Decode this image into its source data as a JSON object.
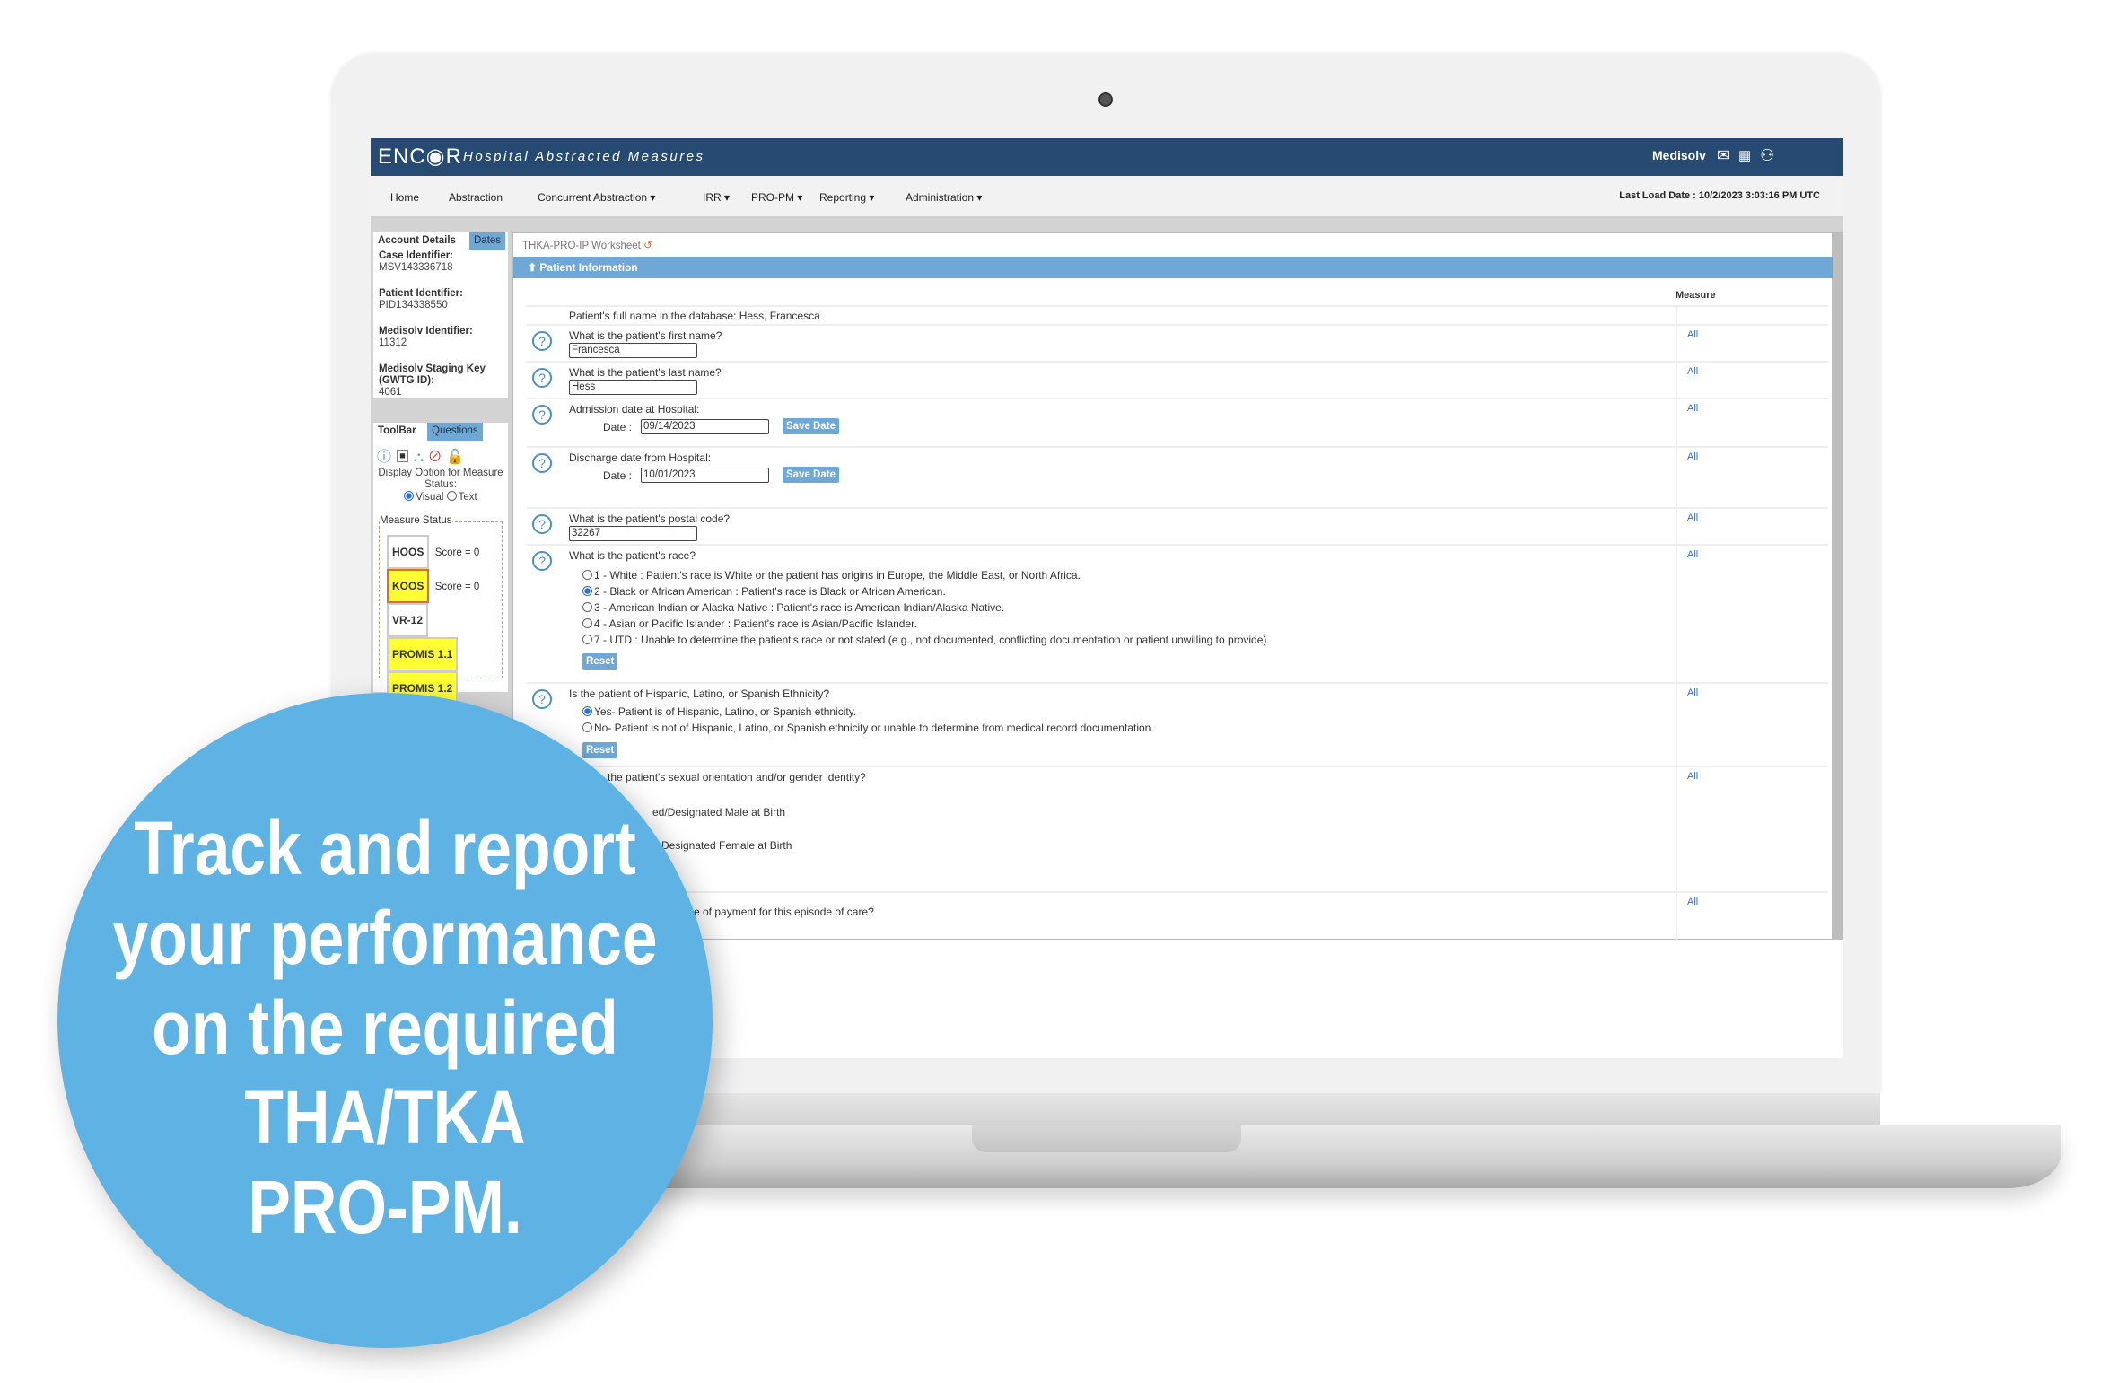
{
  "header": {
    "logo": "ENC◉R",
    "subtitle": "Hospital Abstracted Measures",
    "brand": "Medisolv",
    "icons": [
      "mail-icon",
      "apps-grid-icon",
      "user-icon"
    ]
  },
  "nav": {
    "items": [
      "Home",
      "Abstraction",
      "Concurrent Abstraction ▾",
      "IRR ▾",
      "PRO-PM ▾",
      "Reporting ▾",
      "Administration ▾"
    ],
    "last_load": "Last Load Date : 10/2/2023 3:03:16 PM UTC"
  },
  "account": {
    "tabs": [
      "Account Details",
      "Dates"
    ],
    "fields": [
      {
        "label": "Case Identifier:",
        "value": "MSV143336718"
      },
      {
        "label": "Patient Identifier:",
        "value": "PID134338550"
      },
      {
        "label": "Medisolv Identifier:",
        "value": "11312"
      },
      {
        "label": "Medisolv Staging Key (GWTG ID):",
        "value": "4061"
      }
    ]
  },
  "toolbar": {
    "tabs": [
      "ToolBar",
      "Questions"
    ],
    "display_option": "Display Option for Measure Status:",
    "visual": "Visual",
    "text": "Text",
    "selected": "Visual",
    "measure_status_label": "Measure Status",
    "measures": [
      {
        "name": "HOOS",
        "score": "Score = 0"
      },
      {
        "name": "KOOS",
        "score": "Score = 0"
      },
      {
        "name": "VR-12"
      },
      {
        "name": "PROMIS 1.1"
      },
      {
        "name": "PROMIS 1.2"
      }
    ]
  },
  "worksheet": {
    "title": "THKA-PRO-IP Worksheet",
    "section": "Patient Information",
    "measure_header": "Measure",
    "all": "All",
    "fullname": "Patient's full name in the database: Hess, Francesca",
    "first_q": "What is the patient's first name?",
    "first_v": "Francesca",
    "last_q": "What is the patient's last name?",
    "last_v": "Hess",
    "adm_q": "Admission date at Hospital:",
    "date_label": "Date :",
    "adm_v": "09/14/2023",
    "save_date": "Save Date",
    "dis_q": "Discharge date from Hospital:",
    "dis_v": "10/01/2023",
    "postal_q": "What is the patient's postal code?",
    "postal_v": "32267",
    "race_q": "What is the patient's race?",
    "race_opts": [
      "1 - White : Patient's race is White or the patient has origins in Europe, the Middle East, or North Africa.",
      "2 - Black or African American : Patient's race is Black or African American.",
      "3 - American Indian or Alaska Native : Patient's race is American Indian/Alaska Native.",
      "4 - Asian or Pacific Islander : Patient's race is Asian/Pacific Islander.",
      "7 - UTD : Unable to determine the patient's race or not stated (e.g., not documented, conflicting documentation or patient unwilling to provide)."
    ],
    "race_selected": 1,
    "reset": "Reset",
    "eth_q": "Is the patient of Hispanic, Latino, or Spanish Ethnicity?",
    "eth_opts": [
      "Yes- Patient is of Hispanic, Latino, or Spanish ethnicity.",
      "No- Patient is not of Hispanic, Latino, or Spanish ethnicity or unable to determine from medical record documentation."
    ],
    "eth_selected": 0,
    "sex_q": "the patient's sexual orientation and/or gender identity?",
    "sex_opt1": "ed/Designated Male at Birth",
    "sex_opt2": "Designated Female at Birth",
    "pay_q": "ce of payment for this episode of care?"
  },
  "overlay": {
    "lines": [
      "Track and report",
      "your performance",
      "on the required",
      "THA/TKA",
      "PRO-PM."
    ],
    "color": "#5eb3e4"
  },
  "colors": {
    "header": "#264a72",
    "accent": "#6fa8d6",
    "highlight": "#ffff33"
  }
}
